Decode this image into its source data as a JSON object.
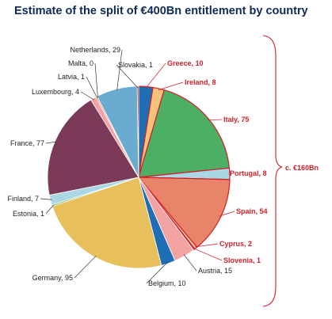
{
  "chart_data": {
    "type": "pie",
    "title": "Estimate of the split of €400Bn entitlement by country",
    "slices": [
      {
        "label": "Greece",
        "value": 10,
        "display": "Greece, 10",
        "color": "#1f6eb4",
        "highlight": true
      },
      {
        "label": "Ireland",
        "value": 8,
        "display": "Ireland, 8",
        "color": "#f4c27a",
        "highlight": true
      },
      {
        "label": "Italy",
        "value": 75,
        "display": "Italy, 75",
        "color": "#4caf64",
        "highlight": true
      },
      {
        "label": "Portugal",
        "value": 8,
        "display": "Portugal, 8",
        "color": "#a9d8e4",
        "highlight": true
      },
      {
        "label": "Spain",
        "value": 54,
        "display": "Spain, 54",
        "color": "#e8846a",
        "highlight": true
      },
      {
        "label": "Cyprus",
        "value": 2,
        "display": "Cyprus, 2",
        "color": "#f1c9a5",
        "highlight": true
      },
      {
        "label": "Slovenia",
        "value": 1,
        "display": "Slovenia, 1",
        "color": "#8a1d32",
        "highlight": true
      },
      {
        "label": "Austria",
        "value": 15,
        "display": "Austria, 15",
        "color": "#f4a3a3",
        "highlight": false
      },
      {
        "label": "Belgium",
        "value": 10,
        "display": "Belgium, 10",
        "color": "#1f6eb4",
        "highlight": false
      },
      {
        "label": "Germany",
        "value": 95,
        "display": "Germany, 95",
        "color": "#e7c05d",
        "highlight": false
      },
      {
        "label": "Estonia",
        "value": 1,
        "display": "Estonia, 1",
        "color": "#6fa44d",
        "highlight": false
      },
      {
        "label": "Finland",
        "value": 7,
        "display": "Finland, 7",
        "color": "#a9d8e4",
        "highlight": false
      },
      {
        "label": "France",
        "value": 77,
        "display": "France, 77",
        "color": "#7a3a58",
        "highlight": false
      },
      {
        "label": "Luxembourg",
        "value": 4,
        "display": "Luxembourg, 4",
        "color": "#f4a3a3",
        "highlight": false
      },
      {
        "label": "Latvia",
        "value": 1,
        "display": "Latvia, 1",
        "color": "#e8846a",
        "highlight": false
      },
      {
        "label": "Malta",
        "value": 0,
        "display": "Malta, 0",
        "color": "#f1c9a5",
        "highlight": false
      },
      {
        "label": "Netherlands",
        "value": 29,
        "display": "Netherlands, 29",
        "color": "#6aaccf",
        "highlight": false
      },
      {
        "label": "Slovakia",
        "value": 1,
        "display": "Slovakia, 1",
        "color": "#8a1d32",
        "highlight": false
      }
    ],
    "annotation": "c. €160Bn",
    "highlight_color": "#d11f2a"
  }
}
